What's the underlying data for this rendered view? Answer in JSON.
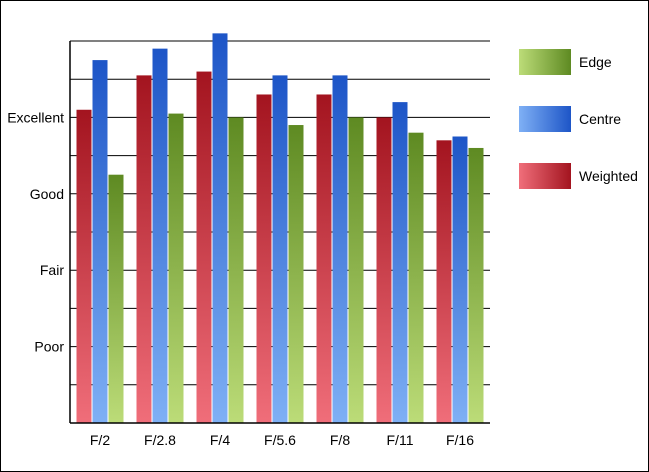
{
  "chart_data": {
    "type": "bar",
    "title": "",
    "xlabel": "",
    "ylabel": "",
    "categories": [
      "F/2",
      "F/2.8",
      "F/4",
      "F/5.6",
      "F/8",
      "F/11",
      "F/16"
    ],
    "y_ticks": [
      {
        "label": "Poor",
        "value": 2
      },
      {
        "label": "Fair",
        "value": 4
      },
      {
        "label": "Good",
        "value": 6
      },
      {
        "label": "Excellent",
        "value": 8
      }
    ],
    "ylim": [
      0,
      10
    ],
    "grid": "horizontal",
    "legend_position": "right",
    "series": [
      {
        "name": "Weighted",
        "color_top": "#a3141f",
        "color_bottom": "#f06e7a",
        "values": [
          8.2,
          9.1,
          9.2,
          8.6,
          8.6,
          8.0,
          7.4
        ]
      },
      {
        "name": "Centre",
        "color_top": "#1d55c7",
        "color_bottom": "#7fb0f5",
        "values": [
          9.5,
          9.8,
          10.2,
          9.1,
          9.1,
          8.4,
          7.5
        ]
      },
      {
        "name": "Edge",
        "color_top": "#5e8a22",
        "color_bottom": "#bcdc78",
        "values": [
          6.5,
          8.1,
          8.0,
          7.8,
          8.0,
          7.6,
          7.2
        ]
      }
    ],
    "legend_order": [
      "Edge",
      "Centre",
      "Weighted"
    ]
  }
}
